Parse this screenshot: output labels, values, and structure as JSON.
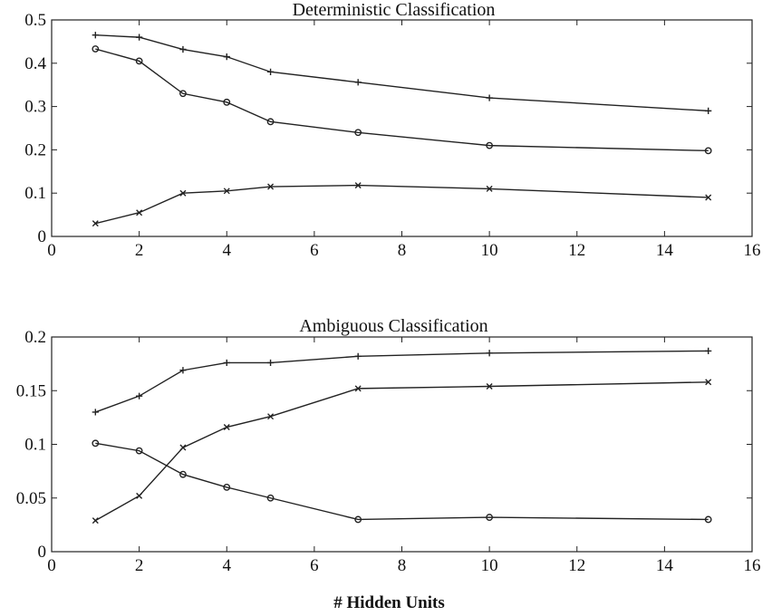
{
  "chart_data": [
    {
      "type": "line",
      "title": "Deterministic Classification",
      "xlabel": "",
      "ylabel": "",
      "xlim": [
        0,
        16
      ],
      "ylim": [
        0,
        0.5
      ],
      "xticks": [
        "0",
        "2",
        "4",
        "6",
        "8",
        "10",
        "12",
        "14",
        "16"
      ],
      "yticks": [
        "0",
        "0.1",
        "0.2",
        "0.3",
        "0.4",
        "0.5"
      ],
      "x": [
        1,
        2,
        3,
        4,
        5,
        7,
        10,
        15
      ],
      "series": [
        {
          "name": "plus",
          "marker": "plus",
          "values": [
            0.465,
            0.46,
            0.432,
            0.415,
            0.38,
            0.356,
            0.32,
            0.29
          ]
        },
        {
          "name": "circle",
          "marker": "circle",
          "values": [
            0.433,
            0.405,
            0.33,
            0.31,
            0.265,
            0.24,
            0.21,
            0.198
          ]
        },
        {
          "name": "cross",
          "marker": "x",
          "values": [
            0.03,
            0.055,
            0.1,
            0.105,
            0.115,
            0.118,
            0.11,
            0.09
          ]
        }
      ]
    },
    {
      "type": "line",
      "title": "Ambiguous Classification",
      "xlabel": "# Hidden Units",
      "ylabel": "",
      "xlim": [
        0,
        16
      ],
      "ylim": [
        0,
        0.2
      ],
      "xticks": [
        "0",
        "2",
        "4",
        "6",
        "8",
        "10",
        "12",
        "14",
        "16"
      ],
      "yticks": [
        "0",
        "0.05",
        "0.1",
        "0.15",
        "0.2"
      ],
      "x": [
        1,
        2,
        3,
        4,
        5,
        7,
        10,
        15
      ],
      "series": [
        {
          "name": "plus",
          "marker": "plus",
          "values": [
            0.13,
            0.145,
            0.169,
            0.176,
            0.176,
            0.182,
            0.185,
            0.187
          ]
        },
        {
          "name": "cross",
          "marker": "x",
          "values": [
            0.029,
            0.052,
            0.097,
            0.116,
            0.126,
            0.152,
            0.154,
            0.158
          ]
        },
        {
          "name": "circle",
          "marker": "circle",
          "values": [
            0.101,
            0.094,
            0.072,
            0.06,
            0.05,
            0.03,
            0.032,
            0.03
          ]
        }
      ]
    }
  ]
}
